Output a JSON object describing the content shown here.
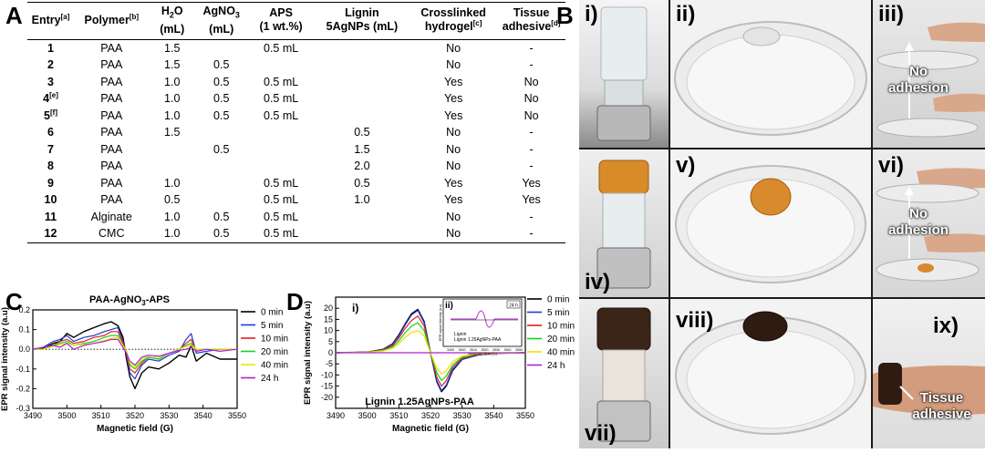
{
  "panel_labels": {
    "A": "A",
    "B": "B",
    "C": "C",
    "D": "D"
  },
  "table": {
    "headers": [
      {
        "text": "Entry",
        "sup": "[a]"
      },
      {
        "text": "Polymer",
        "sup": "[b]"
      },
      {
        "line1": "H",
        "sub": "2",
        "tail": "O",
        "line2": "(mL)"
      },
      {
        "line1": "AgNO",
        "sub": "3",
        "tail": "",
        "line2": "(mL)"
      },
      {
        "line1": "APS",
        "line2": "(1 wt.%)"
      },
      {
        "line1": "Lignin",
        "line2": "5AgNPs (mL)"
      },
      {
        "line1": "Crosslinked",
        "line2": "hydrogel",
        "sup2": "[c]"
      },
      {
        "line1": "Tissue",
        "line2": "adhesive",
        "sup2": "[d]"
      }
    ],
    "rows": [
      {
        "entry": "1",
        "sup": "",
        "polymer": "PAA",
        "h2o": "1.5",
        "agno3": "",
        "aps": "0.5 mL",
        "lignin": "",
        "crosslinked": "No",
        "adhesive": "-"
      },
      {
        "entry": "2",
        "sup": "",
        "polymer": "PAA",
        "h2o": "1.5",
        "agno3": "0.5",
        "aps": "",
        "lignin": "",
        "crosslinked": "No",
        "adhesive": "-"
      },
      {
        "entry": "3",
        "sup": "",
        "polymer": "PAA",
        "h2o": "1.0",
        "agno3": "0.5",
        "aps": "0.5 mL",
        "lignin": "",
        "crosslinked": "Yes",
        "adhesive": "No"
      },
      {
        "entry": "4",
        "sup": "[e]",
        "polymer": "PAA",
        "h2o": "1.0",
        "agno3": "0.5",
        "aps": "0.5 mL",
        "lignin": "",
        "crosslinked": "Yes",
        "adhesive": "No"
      },
      {
        "entry": "5",
        "sup": "[f]",
        "polymer": "PAA",
        "h2o": "1.0",
        "agno3": "0.5",
        "aps": "0.5 mL",
        "lignin": "",
        "crosslinked": "Yes",
        "adhesive": "No"
      },
      {
        "entry": "6",
        "sup": "",
        "polymer": "PAA",
        "h2o": "1.5",
        "agno3": "",
        "aps": "",
        "lignin": "0.5",
        "crosslinked": "No",
        "adhesive": "-"
      },
      {
        "entry": "7",
        "sup": "",
        "polymer": "PAA",
        "h2o": "",
        "agno3": "0.5",
        "aps": "",
        "lignin": "1.5",
        "crosslinked": "No",
        "adhesive": "-"
      },
      {
        "entry": "8",
        "sup": "",
        "polymer": "PAA",
        "h2o": "",
        "agno3": "",
        "aps": "",
        "lignin": "2.0",
        "crosslinked": "No",
        "adhesive": "-"
      },
      {
        "entry": "9",
        "sup": "",
        "polymer": "PAA",
        "h2o": "1.0",
        "agno3": "",
        "aps": "0.5 mL",
        "lignin": "0.5",
        "crosslinked": "Yes",
        "adhesive": "Yes"
      },
      {
        "entry": "10",
        "sup": "",
        "polymer": "PAA",
        "h2o": "0.5",
        "agno3": "",
        "aps": "0.5 mL",
        "lignin": "1.0",
        "crosslinked": "Yes",
        "adhesive": "Yes"
      },
      {
        "entry": "11",
        "sup": "",
        "polymer": "Alginate",
        "h2o": "1.0",
        "agno3": "0.5",
        "aps": "0.5 mL",
        "lignin": "",
        "crosslinked": "No",
        "adhesive": "-"
      },
      {
        "entry": "12",
        "sup": "",
        "polymer": "CMC",
        "h2o": "1.0",
        "agno3": "0.5",
        "aps": "0.5 mL",
        "lignin": "",
        "crosslinked": "No",
        "adhesive": "-"
      }
    ]
  },
  "chart_data": [
    {
      "id": "C",
      "type": "line",
      "title_main": "PAA-AgNO",
      "title_sub": "3",
      "title_tail": "-APS",
      "xlabel": "Magnetic field (G)",
      "ylabel": "EPR signal intensity (a.u)",
      "xlim": [
        3490,
        3550
      ],
      "ylim": [
        -0.3,
        0.2
      ],
      "xticks": [
        3490,
        3500,
        3510,
        3520,
        3530,
        3540,
        3550
      ],
      "yticks": [
        -0.3,
        -0.2,
        -0.1,
        0.0,
        0.1,
        0.2
      ],
      "ytick_labels": [
        "-0.3",
        "-0.2",
        "-0.1",
        "0.0",
        "0.1",
        "0.2"
      ],
      "x": [
        3490,
        3493,
        3496,
        3498,
        3500,
        3502,
        3505,
        3508,
        3511,
        3513,
        3515,
        3516.5,
        3517.5,
        3518.5,
        3520,
        3522,
        3524,
        3527,
        3530,
        3533,
        3535,
        3536.5,
        3538,
        3541,
        3545,
        3550
      ],
      "series": [
        {
          "name": "0 min",
          "color": "#000000",
          "values": [
            0.0,
            0.005,
            0.03,
            0.04,
            0.08,
            0.06,
            0.09,
            0.11,
            0.13,
            0.14,
            0.12,
            0.06,
            -0.05,
            -0.14,
            -0.2,
            -0.12,
            -0.09,
            -0.1,
            -0.07,
            -0.03,
            -0.04,
            0.02,
            -0.06,
            -0.02,
            -0.05,
            -0.05
          ]
        },
        {
          "name": "5 min",
          "color": "#1f3bd6",
          "values": [
            0.0,
            0.01,
            0.04,
            0.05,
            0.07,
            0.04,
            0.06,
            0.07,
            0.09,
            0.1,
            0.11,
            0.04,
            -0.03,
            -0.12,
            -0.15,
            -0.08,
            -0.05,
            -0.06,
            -0.03,
            -0.01,
            0.05,
            0.08,
            -0.02,
            -0.01,
            0.0,
            0.0
          ]
        },
        {
          "name": "10 min",
          "color": "#e02020",
          "values": [
            0.0,
            0.0,
            0.02,
            0.04,
            0.05,
            0.03,
            0.04,
            0.06,
            0.07,
            0.09,
            0.09,
            0.03,
            -0.02,
            -0.1,
            -0.12,
            -0.07,
            -0.04,
            -0.05,
            -0.02,
            0.0,
            0.03,
            0.05,
            -0.01,
            0.0,
            0.0,
            0.0
          ]
        },
        {
          "name": "20 min",
          "color": "#1bd11b",
          "values": [
            0.0,
            0.0,
            0.02,
            0.03,
            0.04,
            0.02,
            0.03,
            0.04,
            0.06,
            0.07,
            0.07,
            0.02,
            -0.01,
            -0.08,
            -0.1,
            -0.06,
            -0.04,
            -0.05,
            -0.02,
            0.0,
            0.02,
            0.03,
            0.0,
            0.0,
            0.0,
            0.0
          ]
        },
        {
          "name": "40 min",
          "color": "#e6e600",
          "values": [
            0.0,
            0.0,
            0.015,
            0.025,
            0.03,
            0.02,
            0.025,
            0.03,
            0.045,
            0.055,
            0.06,
            0.02,
            -0.01,
            -0.07,
            -0.09,
            -0.05,
            -0.03,
            -0.04,
            -0.02,
            0.0,
            0.015,
            0.02,
            0.0,
            0.0,
            0.0,
            0.0
          ]
        },
        {
          "name": "24 h",
          "color": "#b01fd6",
          "values": [
            0.0,
            0.01,
            0.02,
            0.01,
            0.03,
            0.0,
            0.02,
            0.03,
            0.04,
            0.05,
            0.05,
            0.01,
            -0.02,
            -0.06,
            -0.08,
            -0.04,
            -0.03,
            -0.035,
            -0.02,
            -0.005,
            0.0,
            0.01,
            -0.01,
            0.0,
            -0.01,
            0.0
          ]
        }
      ]
    },
    {
      "id": "D",
      "type": "line",
      "title": "Lignin 1.25AgNPs-PAA",
      "panel_sub": "i)",
      "inset_label": "ii)",
      "xlabel": "Magnetic field (G)",
      "ylabel": "EPR signal intensity (a.u)",
      "xlim": [
        3490,
        3550
      ],
      "ylim": [
        -25,
        25
      ],
      "xticks": [
        3490,
        3500,
        3510,
        3520,
        3530,
        3540,
        3550
      ],
      "yticks": [
        -20,
        -15,
        -10,
        -5,
        0,
        5,
        10,
        15,
        20
      ],
      "x": [
        3490,
        3500,
        3505,
        3508,
        3510,
        3512,
        3514,
        3516,
        3518,
        3520,
        3522,
        3523.5,
        3525,
        3527,
        3530,
        3535,
        3540,
        3550
      ],
      "series": [
        {
          "name": "0 min",
          "color": "#000000",
          "values": [
            0.0,
            0.3,
            1.5,
            4,
            8,
            13,
            17.5,
            19.5,
            14,
            0,
            -13,
            -17.5,
            -15,
            -8,
            -3,
            -1,
            -0.3,
            0
          ]
        },
        {
          "name": "5 min",
          "color": "#1f3bd6",
          "values": [
            0.0,
            0.3,
            1.4,
            3.8,
            7.5,
            12.5,
            17,
            19,
            13.5,
            0,
            -12.5,
            -17,
            -14.5,
            -7.5,
            -3,
            -1,
            -0.3,
            0
          ]
        },
        {
          "name": "10 min",
          "color": "#e02020",
          "values": [
            0.0,
            0.3,
            1.2,
            3.2,
            6.5,
            11,
            14.5,
            16.5,
            12,
            0,
            -11,
            -15,
            -12.5,
            -6.5,
            -2.5,
            -0.8,
            -0.3,
            0
          ]
        },
        {
          "name": "20 min",
          "color": "#1bd11b",
          "values": [
            0.0,
            0.2,
            1.0,
            2.6,
            5.2,
            9,
            12,
            13.5,
            10,
            0,
            -9,
            -12.5,
            -10.5,
            -5.5,
            -2,
            -0.6,
            -0.2,
            0
          ]
        },
        {
          "name": "40 min",
          "color": "#e6e600",
          "values": [
            0.0,
            0.2,
            0.8,
            2,
            4,
            7,
            9,
            10,
            7.5,
            0,
            -7,
            -9.5,
            -8,
            -4,
            -1.5,
            -0.5,
            -0.2,
            0
          ]
        },
        {
          "name": "24 h",
          "color": "#b01fd6",
          "values": [
            0.0,
            0,
            0,
            0,
            0,
            0,
            0,
            0,
            0,
            0,
            0,
            0,
            0,
            0,
            0,
            0,
            0,
            0
          ]
        }
      ],
      "inset": {
        "xticks_labels": [
          "3490",
          "3500",
          "3510",
          "3520",
          "3530",
          "3540",
          "3550"
        ],
        "ylabel": "EPR signal intensity (a.u)",
        "xlabel": "Magnetic field (G)",
        "tag": "24 h",
        "legend": [
          "Lignin",
          "Lignin 1.25AgNPs-PAA"
        ]
      }
    }
  ],
  "photos": {
    "labels": [
      "i)",
      "ii)",
      "iii)",
      "iv)",
      "v)",
      "vi)",
      "vii)",
      "viii)",
      "ix)"
    ],
    "captions": {
      "iii": [
        "No",
        "adhesion"
      ],
      "vi": [
        "No",
        "adhesion"
      ],
      "ix": [
        "Tissue",
        "adhesive"
      ]
    }
  }
}
